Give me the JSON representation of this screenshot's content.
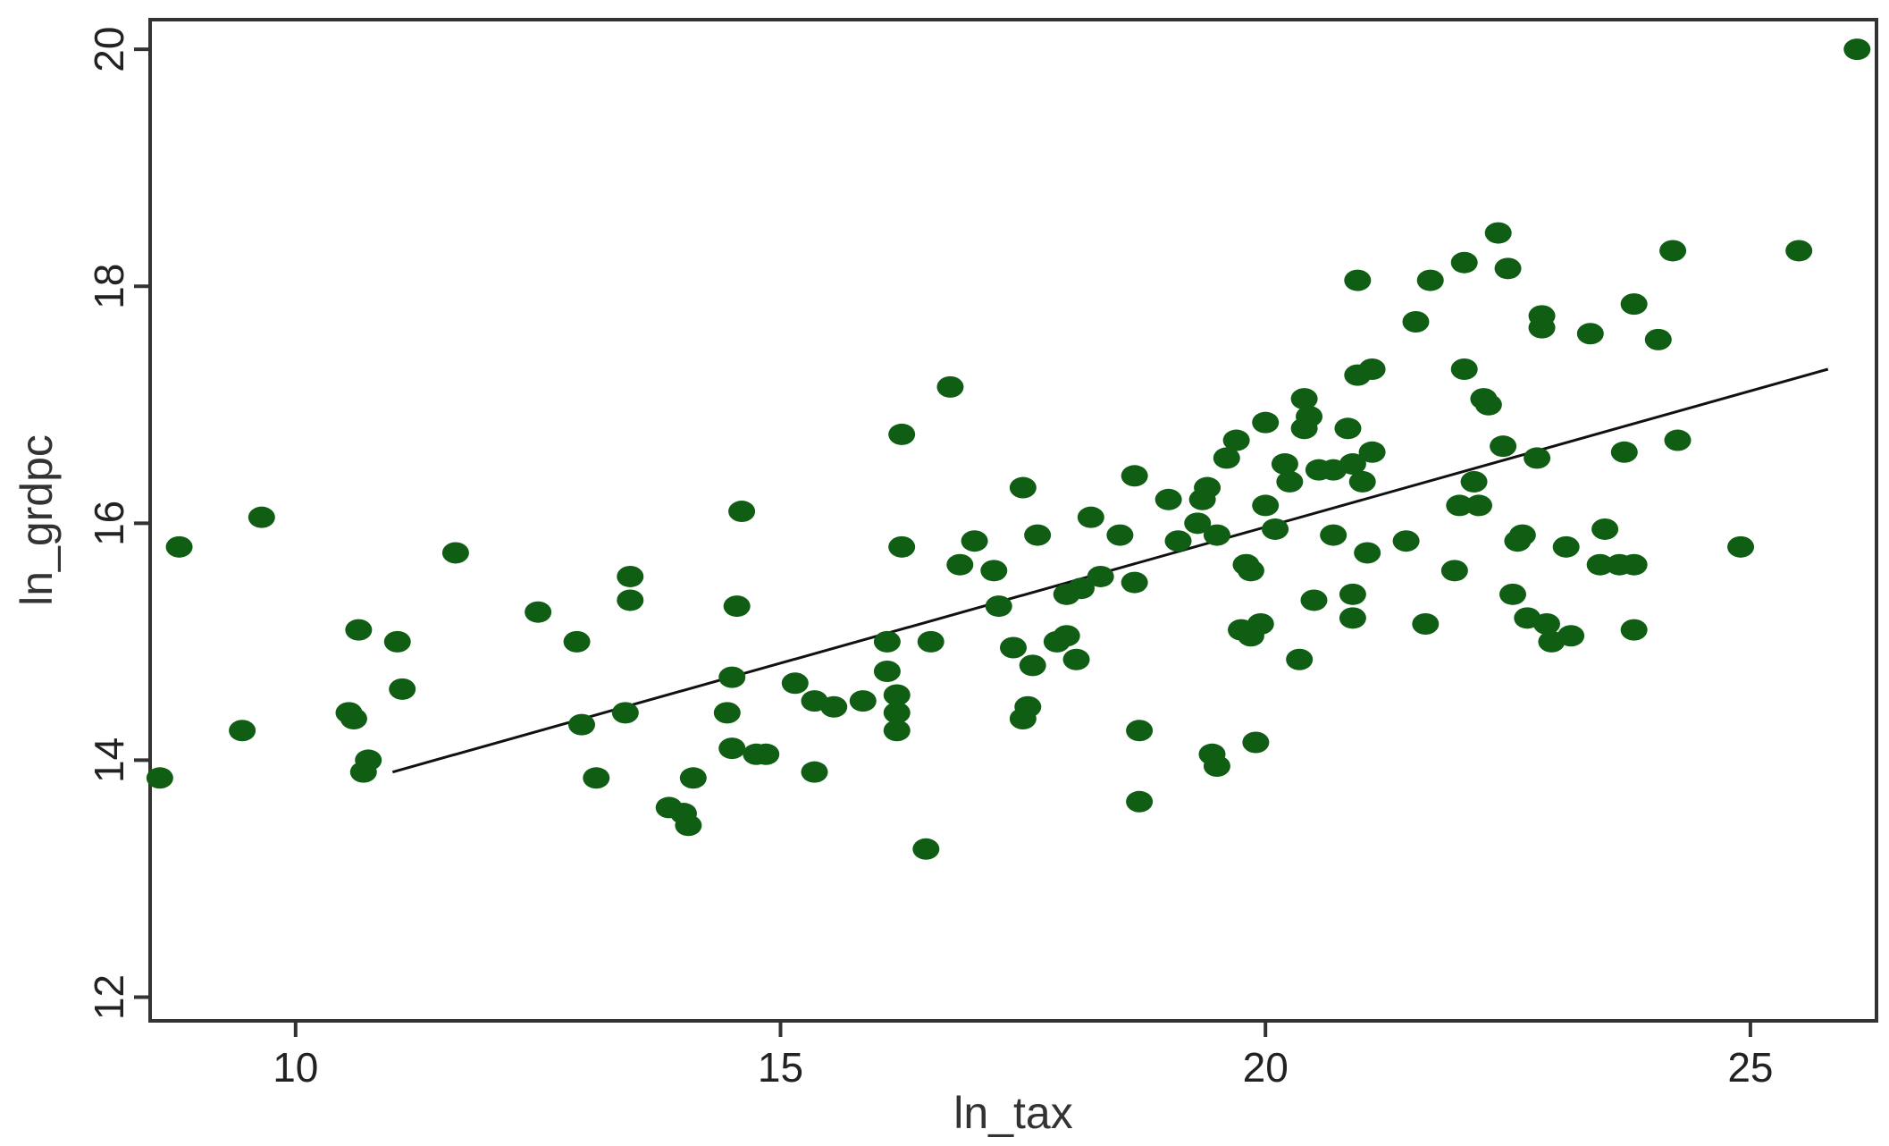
{
  "chart_data": {
    "type": "scatter",
    "title": "",
    "xlabel": "ln_tax",
    "ylabel": "ln_grdpc",
    "xlim": [
      8.5,
      26.3
    ],
    "ylim": [
      11.8,
      20.25
    ],
    "x_ticks": [
      10,
      15,
      20,
      25
    ],
    "y_ticks": [
      12,
      14,
      16,
      18,
      20
    ],
    "grid": false,
    "legend": "none",
    "colors": {
      "points": "#0f5e14",
      "fit_line": "#111111",
      "frame": "#333333"
    },
    "series": [
      {
        "type": "scatter",
        "points": [
          [
            8.6,
            13.85
          ],
          [
            8.8,
            15.8
          ],
          [
            9.45,
            14.25
          ],
          [
            9.65,
            16.05
          ],
          [
            10.55,
            14.4
          ],
          [
            10.6,
            14.35
          ],
          [
            10.65,
            15.1
          ],
          [
            10.7,
            13.9
          ],
          [
            10.75,
            14.0
          ],
          [
            11.05,
            15.0
          ],
          [
            11.1,
            14.6
          ],
          [
            11.65,
            15.75
          ],
          [
            12.5,
            15.25
          ],
          [
            12.9,
            15.0
          ],
          [
            12.95,
            14.3
          ],
          [
            13.1,
            13.85
          ],
          [
            13.4,
            14.4
          ],
          [
            13.45,
            15.55
          ],
          [
            13.45,
            15.35
          ],
          [
            13.85,
            13.6
          ],
          [
            14.0,
            13.55
          ],
          [
            14.05,
            13.45
          ],
          [
            14.1,
            13.85
          ],
          [
            14.45,
            14.4
          ],
          [
            14.5,
            14.7
          ],
          [
            14.5,
            14.1
          ],
          [
            14.55,
            15.3
          ],
          [
            14.6,
            16.1
          ],
          [
            14.75,
            14.05
          ],
          [
            14.85,
            14.05
          ],
          [
            15.15,
            14.65
          ],
          [
            15.35,
            13.9
          ],
          [
            15.35,
            14.5
          ],
          [
            15.55,
            14.45
          ],
          [
            15.85,
            14.5
          ],
          [
            16.1,
            15.0
          ],
          [
            16.1,
            14.75
          ],
          [
            16.2,
            14.55
          ],
          [
            16.2,
            14.4
          ],
          [
            16.2,
            14.25
          ],
          [
            16.25,
            16.75
          ],
          [
            16.25,
            15.8
          ],
          [
            16.5,
            13.25
          ],
          [
            16.55,
            15.0
          ],
          [
            16.75,
            17.15
          ],
          [
            16.85,
            15.65
          ],
          [
            17.0,
            15.85
          ],
          [
            17.2,
            15.6
          ],
          [
            17.25,
            15.3
          ],
          [
            17.4,
            14.95
          ],
          [
            17.5,
            14.35
          ],
          [
            17.5,
            16.3
          ],
          [
            17.55,
            14.45
          ],
          [
            17.6,
            14.8
          ],
          [
            17.65,
            15.9
          ],
          [
            17.85,
            15.0
          ],
          [
            17.95,
            15.05
          ],
          [
            17.95,
            15.4
          ],
          [
            18.05,
            14.85
          ],
          [
            18.1,
            15.45
          ],
          [
            18.2,
            16.05
          ],
          [
            18.3,
            15.55
          ],
          [
            18.5,
            15.9
          ],
          [
            18.65,
            16.4
          ],
          [
            18.65,
            15.5
          ],
          [
            18.7,
            14.25
          ],
          [
            18.7,
            13.65
          ],
          [
            19.0,
            16.2
          ],
          [
            19.1,
            15.85
          ],
          [
            19.3,
            16.0
          ],
          [
            19.35,
            16.2
          ],
          [
            19.4,
            16.3
          ],
          [
            19.45,
            14.05
          ],
          [
            19.5,
            13.95
          ],
          [
            19.5,
            15.9
          ],
          [
            19.6,
            16.55
          ],
          [
            19.7,
            16.7
          ],
          [
            19.75,
            15.1
          ],
          [
            19.8,
            15.65
          ],
          [
            19.85,
            15.6
          ],
          [
            19.85,
            15.05
          ],
          [
            19.9,
            14.15
          ],
          [
            19.95,
            15.15
          ],
          [
            20.0,
            16.15
          ],
          [
            20.0,
            16.85
          ],
          [
            20.1,
            15.95
          ],
          [
            20.2,
            16.5
          ],
          [
            20.25,
            16.35
          ],
          [
            20.35,
            14.85
          ],
          [
            20.4,
            16.8
          ],
          [
            20.4,
            17.05
          ],
          [
            20.45,
            16.9
          ],
          [
            20.5,
            15.35
          ],
          [
            20.55,
            16.45
          ],
          [
            20.7,
            15.9
          ],
          [
            20.7,
            16.45
          ],
          [
            20.85,
            16.8
          ],
          [
            20.9,
            16.5
          ],
          [
            20.9,
            15.2
          ],
          [
            20.9,
            15.4
          ],
          [
            20.95,
            18.05
          ],
          [
            20.95,
            17.25
          ],
          [
            21.0,
            16.35
          ],
          [
            21.05,
            15.75
          ],
          [
            21.1,
            16.6
          ],
          [
            21.1,
            17.3
          ],
          [
            21.45,
            15.85
          ],
          [
            21.55,
            17.7
          ],
          [
            21.65,
            15.15
          ],
          [
            21.7,
            18.05
          ],
          [
            21.95,
            15.6
          ],
          [
            22.0,
            16.15
          ],
          [
            22.05,
            18.2
          ],
          [
            22.05,
            17.3
          ],
          [
            22.15,
            16.35
          ],
          [
            22.2,
            16.15
          ],
          [
            22.25,
            17.05
          ],
          [
            22.3,
            17.0
          ],
          [
            22.4,
            18.45
          ],
          [
            22.45,
            16.65
          ],
          [
            22.5,
            18.15
          ],
          [
            22.55,
            15.4
          ],
          [
            22.6,
            15.85
          ],
          [
            22.65,
            15.9
          ],
          [
            22.7,
            15.2
          ],
          [
            22.8,
            16.55
          ],
          [
            22.85,
            17.75
          ],
          [
            22.85,
            17.65
          ],
          [
            22.9,
            15.15
          ],
          [
            22.95,
            15.0
          ],
          [
            23.1,
            15.8
          ],
          [
            23.15,
            15.05
          ],
          [
            23.35,
            17.6
          ],
          [
            23.45,
            15.65
          ],
          [
            23.5,
            15.95
          ],
          [
            23.65,
            15.65
          ],
          [
            23.7,
            16.6
          ],
          [
            23.8,
            15.65
          ],
          [
            23.8,
            17.85
          ],
          [
            23.8,
            15.1
          ],
          [
            24.05,
            17.55
          ],
          [
            24.2,
            18.3
          ],
          [
            24.25,
            16.7
          ],
          [
            24.9,
            15.8
          ],
          [
            25.5,
            18.3
          ],
          [
            26.1,
            20.0
          ]
        ]
      },
      {
        "type": "line",
        "points": [
          [
            11.0,
            13.9
          ],
          [
            25.8,
            17.3
          ]
        ]
      }
    ]
  }
}
